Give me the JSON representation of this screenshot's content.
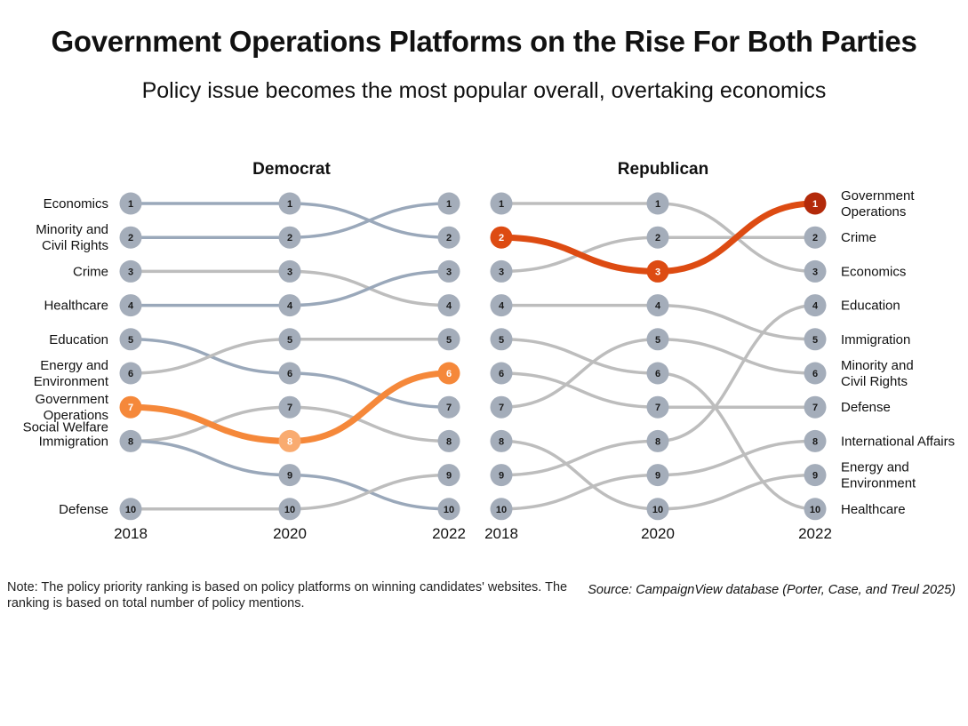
{
  "title": "Government Operations Platforms on the Rise For Both Parties",
  "subtitle": "Policy issue becomes the most popular overall, overtaking economics",
  "note": "Note: The policy priority ranking is based on policy platforms on winning candidates' websites. The ranking is based on total number of policy mentions.",
  "source": "Source: CampaignView database (Porter, Case, and Treul 2025)",
  "colors": {
    "blue_line": "#9aa8ba",
    "gray_line": "#bdbdbd",
    "node": "#a4adba",
    "dem_highlight": "#f5883a",
    "dem_highlight_mid": "#f9ab70",
    "rep_highlight": "#dd4b12",
    "rep_highlight_top": "#b32a0a"
  },
  "chart_data": [
    {
      "type": "bump",
      "title": "Democrat",
      "x": [
        "2018",
        "2020",
        "2022"
      ],
      "label_side": "left",
      "highlight": "Government Operations",
      "series": [
        {
          "name": "Economics",
          "label": [
            "Economics"
          ],
          "ranks": [
            1,
            1,
            2
          ],
          "color": "blue"
        },
        {
          "name": "Minority and Civil Rights",
          "label": [
            "Minority and",
            "Civil Rights"
          ],
          "ranks": [
            2,
            2,
            1
          ],
          "color": "blue"
        },
        {
          "name": "Crime",
          "label": [
            "Crime"
          ],
          "ranks": [
            3,
            3,
            4
          ],
          "color": "gray"
        },
        {
          "name": "Healthcare",
          "label": [
            "Healthcare"
          ],
          "ranks": [
            4,
            4,
            3
          ],
          "color": "blue"
        },
        {
          "name": "Education",
          "label": [
            "Education"
          ],
          "ranks": [
            5,
            6,
            7
          ],
          "color": "blue"
        },
        {
          "name": "Energy and Environment",
          "label": [
            "Energy and",
            "Environment"
          ],
          "ranks": [
            6,
            5,
            5
          ],
          "color": "gray"
        },
        {
          "name": "Government Operations",
          "label": [
            "Government",
            "Operations"
          ],
          "ranks": [
            7,
            8,
            6
          ],
          "color": "highlight"
        },
        {
          "name": "Social Welfare",
          "label": [
            "Social Welfare"
          ],
          "ranks": [
            8,
            7,
            8
          ],
          "color": "gray"
        },
        {
          "name": "Immigration",
          "label": [
            "Immigration"
          ],
          "ranks": [
            8,
            9,
            10
          ],
          "color": "blue"
        },
        {
          "name": "Defense",
          "label": [
            "Defense"
          ],
          "ranks": [
            10,
            10,
            9
          ],
          "color": "gray"
        }
      ]
    },
    {
      "type": "bump",
      "title": "Republican",
      "x": [
        "2018",
        "2020",
        "2022"
      ],
      "label_side": "right",
      "highlight": "Government Operations",
      "series": [
        {
          "name": "Economics",
          "label": [
            "Economics"
          ],
          "ranks": [
            1,
            1,
            3
          ],
          "color": "gray"
        },
        {
          "name": "Government Operations",
          "label": [
            "Government",
            "Operations"
          ],
          "ranks": [
            2,
            3,
            1
          ],
          "color": "highlight"
        },
        {
          "name": "Crime",
          "label": [
            "Crime"
          ],
          "ranks": [
            3,
            2,
            2
          ],
          "color": "gray"
        },
        {
          "name": "Immigration",
          "label": [
            "Immigration"
          ],
          "ranks": [
            4,
            4,
            5
          ],
          "color": "gray"
        },
        {
          "name": "Healthcare",
          "label": [
            "Healthcare"
          ],
          "ranks": [
            5,
            6,
            10
          ],
          "color": "gray"
        },
        {
          "name": "Defense",
          "label": [
            "Defense"
          ],
          "ranks": [
            6,
            7,
            7
          ],
          "color": "gray"
        },
        {
          "name": "Minority and Civil Rights",
          "label": [
            "Minority and",
            "Civil Rights"
          ],
          "ranks": [
            7,
            5,
            6
          ],
          "color": "gray"
        },
        {
          "name": "Energy and Environment",
          "label": [
            "Energy and",
            "Environment"
          ],
          "ranks": [
            8,
            10,
            9
          ],
          "color": "gray"
        },
        {
          "name": "Education",
          "label": [
            "Education"
          ],
          "ranks": [
            9,
            8,
            4
          ],
          "color": "gray"
        },
        {
          "name": "International Affairs",
          "label": [
            "International Affairs"
          ],
          "ranks": [
            10,
            9,
            8
          ],
          "color": "gray"
        }
      ]
    }
  ]
}
